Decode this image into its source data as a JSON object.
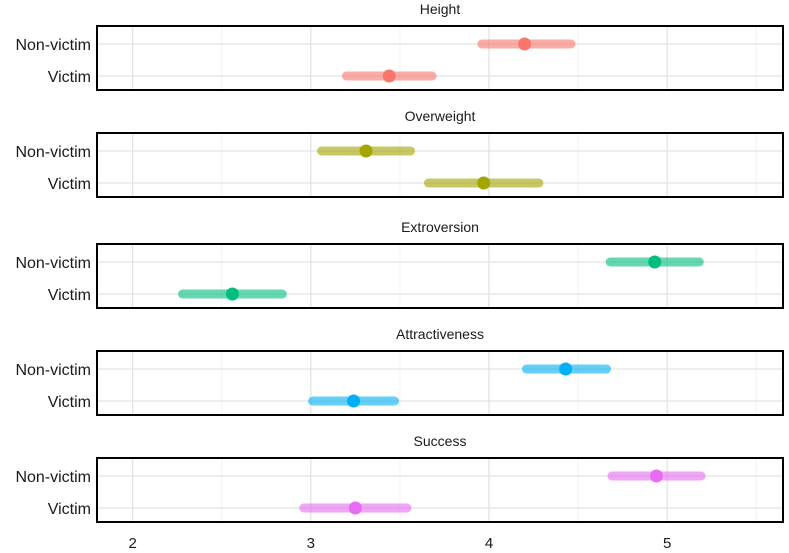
{
  "chart_data": {
    "type": "dot-interval",
    "xlim": [
      1.8,
      5.65
    ],
    "x_ticks": [
      "2",
      "3",
      "4",
      "5"
    ],
    "x_tick_values": [
      2,
      3,
      4,
      5
    ],
    "categories": [
      "Non-victim",
      "Victim"
    ],
    "grid": true,
    "facets": [
      {
        "title": "Height",
        "color": "#F8766D",
        "points": [
          {
            "category": "Non-victim",
            "estimate": 4.2,
            "low": 3.96,
            "high": 4.46
          },
          {
            "category": "Victim",
            "estimate": 3.44,
            "low": 3.2,
            "high": 3.68
          }
        ]
      },
      {
        "title": "Overweight",
        "color": "#A3A500",
        "points": [
          {
            "category": "Non-victim",
            "estimate": 3.31,
            "low": 3.06,
            "high": 3.56
          },
          {
            "category": "Victim",
            "estimate": 3.97,
            "low": 3.66,
            "high": 4.28
          }
        ]
      },
      {
        "title": "Extroversion",
        "color": "#00BF7D",
        "points": [
          {
            "category": "Non-victim",
            "estimate": 4.93,
            "low": 4.68,
            "high": 5.18
          },
          {
            "category": "Victim",
            "estimate": 2.56,
            "low": 2.28,
            "high": 2.84
          }
        ]
      },
      {
        "title": "Attractiveness",
        "color": "#00B0F6",
        "points": [
          {
            "category": "Non-victim",
            "estimate": 4.43,
            "low": 4.21,
            "high": 4.66
          },
          {
            "category": "Victim",
            "estimate": 3.24,
            "low": 3.01,
            "high": 3.47
          }
        ]
      },
      {
        "title": "Success",
        "color": "#E76BF3",
        "points": [
          {
            "category": "Non-victim",
            "estimate": 4.94,
            "low": 4.69,
            "high": 5.19
          },
          {
            "category": "Victim",
            "estimate": 3.25,
            "low": 2.96,
            "high": 3.54
          }
        ]
      }
    ]
  }
}
